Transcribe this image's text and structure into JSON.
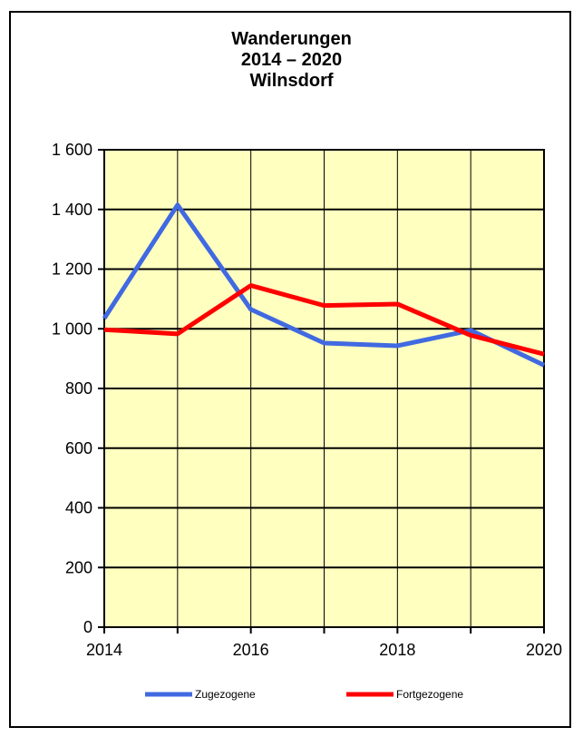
{
  "chart_data": {
    "type": "line",
    "title": [
      "Wanderungen",
      "2014 – 2020",
      "Wilnsdorf"
    ],
    "x": [
      2014,
      2015,
      2016,
      2017,
      2018,
      2019,
      2020
    ],
    "xticks": [
      "2014",
      "2016",
      "2018",
      "2020"
    ],
    "xlim": [
      2014,
      2020
    ],
    "ylim": [
      0,
      1600
    ],
    "yticks": [
      "0",
      "200",
      "400",
      "600",
      "800",
      "1 000",
      "1 200",
      "1 400",
      "1 600"
    ],
    "grid": true,
    "legend_position": "bottom",
    "plot_background": "#ffffc0",
    "series": [
      {
        "name": "Zugezogene",
        "color": "#4169e1",
        "values": [
          1035,
          1415,
          1065,
          952,
          943,
          995,
          878
        ]
      },
      {
        "name": "Fortgezogene",
        "color": "#ff0000",
        "values": [
          997,
          983,
          1145,
          1078,
          1083,
          978,
          915
        ]
      }
    ]
  }
}
